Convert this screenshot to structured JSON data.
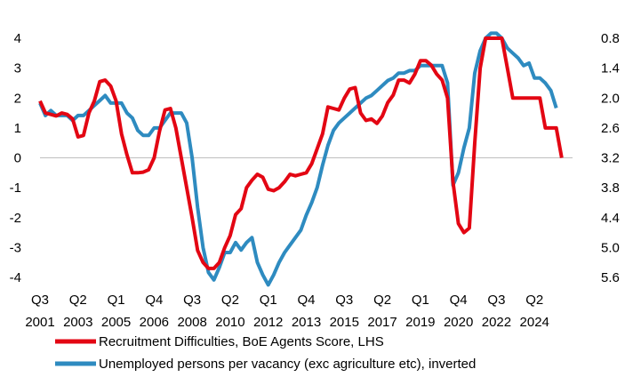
{
  "chart_data": {
    "type": "line",
    "title": "",
    "xlabel": "",
    "ylabel": "",
    "ylim_left": [
      -4,
      4
    ],
    "yticks_left": [
      "4",
      "3",
      "2",
      "1",
      "0",
      "-1",
      "-2",
      "-3",
      "-4"
    ],
    "ylim_right_inverted": [
      0.8,
      5.6
    ],
    "yticks_right": [
      "0.8",
      "1.4",
      "2.0",
      "2.6",
      "3.2",
      "3.8",
      "4.4",
      "5.0",
      "5.6"
    ],
    "xlim": [
      2001.5,
      2026.0
    ],
    "xticks": [
      {
        "quarter": "Q3",
        "year": "2001",
        "x": 2001.5
      },
      {
        "quarter": "Q2",
        "year": "2003",
        "x": 2003.25
      },
      {
        "quarter": "Q1",
        "year": "2005",
        "x": 2005.0
      },
      {
        "quarter": "Q4",
        "year": "2006",
        "x": 2006.75
      },
      {
        "quarter": "Q3",
        "year": "2008",
        "x": 2008.5
      },
      {
        "quarter": "Q2",
        "year": "2010",
        "x": 2010.25
      },
      {
        "quarter": "Q1",
        "year": "2012",
        "x": 2012.0
      },
      {
        "quarter": "Q4",
        "year": "2013",
        "x": 2013.75
      },
      {
        "quarter": "Q3",
        "year": "2015",
        "x": 2015.5
      },
      {
        "quarter": "Q2",
        "year": "2017",
        "x": 2017.25
      },
      {
        "quarter": "Q1",
        "year": "2019",
        "x": 2019.0
      },
      {
        "quarter": "Q4",
        "year": "2020",
        "x": 2020.75
      },
      {
        "quarter": "Q3",
        "year": "2022",
        "x": 2022.5
      },
      {
        "quarter": "Q2",
        "year": "2024",
        "x": 2024.25
      }
    ],
    "grid": false,
    "legend_position": "bottom",
    "series": [
      {
        "name": "Recruitment Difficulties, BoE Agents Score, LHS",
        "axis": "left",
        "color": "#e30613",
        "points": [
          [
            2001.5,
            1.9
          ],
          [
            2001.75,
            1.5
          ],
          [
            2002.0,
            1.45
          ],
          [
            2002.25,
            1.4
          ],
          [
            2002.5,
            1.5
          ],
          [
            2002.75,
            1.45
          ],
          [
            2003.0,
            1.3
          ],
          [
            2003.25,
            0.7
          ],
          [
            2003.5,
            0.75
          ],
          [
            2003.75,
            1.5
          ],
          [
            2004.0,
            1.9
          ],
          [
            2004.25,
            2.55
          ],
          [
            2004.5,
            2.6
          ],
          [
            2004.75,
            2.4
          ],
          [
            2005.0,
            1.9
          ],
          [
            2005.25,
            0.8
          ],
          [
            2005.5,
            0.1
          ],
          [
            2005.75,
            -0.5
          ],
          [
            2006.0,
            -0.5
          ],
          [
            2006.25,
            -0.48
          ],
          [
            2006.5,
            -0.4
          ],
          [
            2006.75,
            0.0
          ],
          [
            2007.0,
            0.9
          ],
          [
            2007.25,
            1.6
          ],
          [
            2007.5,
            1.65
          ],
          [
            2007.75,
            1.0
          ],
          [
            2008.0,
            0.0
          ],
          [
            2008.25,
            -1.0
          ],
          [
            2008.5,
            -2.0
          ],
          [
            2008.75,
            -3.1
          ],
          [
            2009.0,
            -3.5
          ],
          [
            2009.25,
            -3.7
          ],
          [
            2009.5,
            -3.7
          ],
          [
            2009.75,
            -3.5
          ],
          [
            2010.0,
            -3.0
          ],
          [
            2010.25,
            -2.6
          ],
          [
            2010.5,
            -1.9
          ],
          [
            2010.75,
            -1.7
          ],
          [
            2011.0,
            -1.0
          ],
          [
            2011.25,
            -0.75
          ],
          [
            2011.5,
            -0.55
          ],
          [
            2011.75,
            -0.65
          ],
          [
            2012.0,
            -1.05
          ],
          [
            2012.25,
            -1.1
          ],
          [
            2012.5,
            -1.0
          ],
          [
            2012.75,
            -0.8
          ],
          [
            2013.0,
            -0.55
          ],
          [
            2013.25,
            -0.6
          ],
          [
            2013.5,
            -0.55
          ],
          [
            2013.75,
            -0.5
          ],
          [
            2014.0,
            -0.2
          ],
          [
            2014.25,
            0.3
          ],
          [
            2014.5,
            0.8
          ],
          [
            2014.75,
            1.7
          ],
          [
            2015.0,
            1.65
          ],
          [
            2015.25,
            1.6
          ],
          [
            2015.5,
            2.0
          ],
          [
            2015.75,
            2.3
          ],
          [
            2016.0,
            2.35
          ],
          [
            2016.25,
            1.5
          ],
          [
            2016.5,
            1.25
          ],
          [
            2016.75,
            1.3
          ],
          [
            2017.0,
            1.15
          ],
          [
            2017.25,
            1.4
          ],
          [
            2017.5,
            1.85
          ],
          [
            2017.75,
            2.1
          ],
          [
            2018.0,
            2.6
          ],
          [
            2018.25,
            2.6
          ],
          [
            2018.5,
            2.5
          ],
          [
            2018.75,
            2.8
          ],
          [
            2019.0,
            3.25
          ],
          [
            2019.25,
            3.25
          ],
          [
            2019.5,
            3.1
          ],
          [
            2019.75,
            2.8
          ],
          [
            2020.0,
            2.6
          ],
          [
            2020.25,
            2.0
          ],
          [
            2020.5,
            -0.8
          ],
          [
            2020.75,
            -2.2
          ],
          [
            2021.0,
            -2.5
          ],
          [
            2021.25,
            -2.35
          ],
          [
            2021.5,
            0.5
          ],
          [
            2021.75,
            3.0
          ],
          [
            2022.0,
            4.0
          ],
          [
            2022.25,
            4.0
          ],
          [
            2022.5,
            4.0
          ],
          [
            2022.75,
            4.0
          ],
          [
            2023.0,
            3.0
          ],
          [
            2023.25,
            2.0
          ],
          [
            2023.5,
            2.0
          ],
          [
            2023.75,
            2.0
          ],
          [
            2024.0,
            2.0
          ],
          [
            2024.25,
            2.0
          ],
          [
            2024.5,
            2.0
          ],
          [
            2024.75,
            1.0
          ],
          [
            2025.0,
            1.0
          ],
          [
            2025.25,
            1.0
          ],
          [
            2025.5,
            0.0
          ]
        ]
      },
      {
        "name": "Unemployed persons per vacancy (exc agriculture etc), inverted",
        "axis": "right",
        "color": "#2e8bc0",
        "points": [
          [
            2001.5,
            2.1
          ],
          [
            2001.75,
            2.35
          ],
          [
            2002.0,
            2.25
          ],
          [
            2002.25,
            2.35
          ],
          [
            2002.5,
            2.35
          ],
          [
            2002.75,
            2.35
          ],
          [
            2003.0,
            2.45
          ],
          [
            2003.25,
            2.35
          ],
          [
            2003.5,
            2.35
          ],
          [
            2003.75,
            2.25
          ],
          [
            2004.0,
            2.15
          ],
          [
            2004.25,
            2.05
          ],
          [
            2004.5,
            1.95
          ],
          [
            2004.75,
            2.1
          ],
          [
            2005.0,
            2.1
          ],
          [
            2005.25,
            2.1
          ],
          [
            2005.5,
            2.3
          ],
          [
            2005.75,
            2.4
          ],
          [
            2006.0,
            2.65
          ],
          [
            2006.25,
            2.75
          ],
          [
            2006.5,
            2.75
          ],
          [
            2006.75,
            2.6
          ],
          [
            2007.0,
            2.6
          ],
          [
            2007.25,
            2.45
          ],
          [
            2007.5,
            2.3
          ],
          [
            2007.75,
            2.3
          ],
          [
            2008.0,
            2.3
          ],
          [
            2008.25,
            2.5
          ],
          [
            2008.5,
            3.2
          ],
          [
            2008.75,
            4.2
          ],
          [
            2009.0,
            5.0
          ],
          [
            2009.25,
            5.5
          ],
          [
            2009.5,
            5.65
          ],
          [
            2009.75,
            5.4
          ],
          [
            2010.0,
            5.1
          ],
          [
            2010.25,
            5.1
          ],
          [
            2010.5,
            4.9
          ],
          [
            2010.75,
            5.05
          ],
          [
            2011.0,
            4.9
          ],
          [
            2011.25,
            4.8
          ],
          [
            2011.5,
            5.3
          ],
          [
            2011.75,
            5.55
          ],
          [
            2012.0,
            5.75
          ],
          [
            2012.25,
            5.55
          ],
          [
            2012.5,
            5.3
          ],
          [
            2012.75,
            5.1
          ],
          [
            2013.0,
            4.95
          ],
          [
            2013.25,
            4.8
          ],
          [
            2013.5,
            4.65
          ],
          [
            2013.75,
            4.35
          ],
          [
            2014.0,
            4.1
          ],
          [
            2014.25,
            3.8
          ],
          [
            2014.5,
            3.35
          ],
          [
            2014.75,
            2.95
          ],
          [
            2015.0,
            2.65
          ],
          [
            2015.25,
            2.5
          ],
          [
            2015.5,
            2.4
          ],
          [
            2015.75,
            2.3
          ],
          [
            2016.0,
            2.2
          ],
          [
            2016.25,
            2.1
          ],
          [
            2016.5,
            2.0
          ],
          [
            2016.75,
            1.95
          ],
          [
            2017.0,
            1.85
          ],
          [
            2017.25,
            1.75
          ],
          [
            2017.5,
            1.65
          ],
          [
            2017.75,
            1.6
          ],
          [
            2018.0,
            1.5
          ],
          [
            2018.25,
            1.5
          ],
          [
            2018.5,
            1.45
          ],
          [
            2018.75,
            1.45
          ],
          [
            2019.0,
            1.35
          ],
          [
            2019.25,
            1.35
          ],
          [
            2019.5,
            1.35
          ],
          [
            2019.75,
            1.35
          ],
          [
            2020.0,
            1.35
          ],
          [
            2020.25,
            1.7
          ],
          [
            2020.5,
            3.75
          ],
          [
            2020.75,
            3.5
          ],
          [
            2021.0,
            3.0
          ],
          [
            2021.25,
            2.6
          ],
          [
            2021.5,
            1.5
          ],
          [
            2021.75,
            1.05
          ],
          [
            2022.0,
            0.8
          ],
          [
            2022.25,
            0.7
          ],
          [
            2022.5,
            0.7
          ],
          [
            2022.75,
            0.8
          ],
          [
            2023.0,
            1.0
          ],
          [
            2023.25,
            1.1
          ],
          [
            2023.5,
            1.2
          ],
          [
            2023.75,
            1.35
          ],
          [
            2024.0,
            1.3
          ],
          [
            2024.25,
            1.6
          ],
          [
            2024.5,
            1.6
          ],
          [
            2024.75,
            1.7
          ],
          [
            2025.0,
            1.85
          ],
          [
            2025.25,
            2.2
          ]
        ]
      }
    ]
  }
}
